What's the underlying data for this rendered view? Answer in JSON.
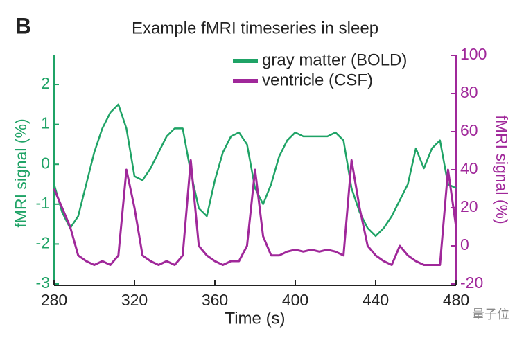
{
  "chart_data": {
    "type": "line",
    "panel_label": "B",
    "title": "Example fMRI timeseries in sleep",
    "x_label": "Time (s)",
    "y_label": "fMRI signal (%)",
    "y2_label": "fMRI signal (%)",
    "watermark": "量子位",
    "x": [
      280,
      284,
      288,
      292,
      296,
      300,
      304,
      308,
      312,
      316,
      320,
      324,
      328,
      332,
      336,
      340,
      344,
      348,
      352,
      356,
      360,
      364,
      368,
      372,
      376,
      380,
      384,
      388,
      392,
      396,
      400,
      404,
      408,
      412,
      416,
      420,
      424,
      428,
      432,
      436,
      440,
      444,
      448,
      452,
      456,
      460,
      464,
      468,
      472,
      476,
      480
    ],
    "series": [
      {
        "name": "gray matter (BOLD)",
        "color": "#1fa366",
        "axis": "y",
        "values": [
          -0.5,
          -1.2,
          -1.6,
          -1.3,
          -0.5,
          0.3,
          0.9,
          1.3,
          1.5,
          0.9,
          -0.3,
          -0.4,
          -0.1,
          0.3,
          0.7,
          0.9,
          0.9,
          -0.2,
          -1.1,
          -1.3,
          -0.4,
          0.3,
          0.7,
          0.8,
          0.5,
          -0.6,
          -1.0,
          -0.5,
          0.2,
          0.6,
          0.8,
          0.7,
          0.7,
          0.7,
          0.7,
          0.8,
          0.6,
          -0.6,
          -1.2,
          -1.6,
          -1.8,
          -1.6,
          -1.3,
          -0.9,
          -0.5,
          0.4,
          -0.1,
          0.4,
          0.6,
          -0.5,
          -0.6
        ]
      },
      {
        "name": "ventricle (CSF)",
        "color": "#a0289a",
        "axis": "y2",
        "values": [
          30,
          20,
          10,
          -5,
          -8,
          -10,
          -8,
          -10,
          -5,
          40,
          20,
          -5,
          -8,
          -10,
          -8,
          -10,
          -5,
          45,
          0,
          -5,
          -8,
          -10,
          -8,
          -8,
          0,
          40,
          5,
          -5,
          -5,
          -3,
          -2,
          -3,
          -2,
          -3,
          -2,
          -3,
          -5,
          45,
          20,
          0,
          -5,
          -8,
          -10,
          0,
          -5,
          -8,
          -10,
          -10,
          -10,
          40,
          10
        ]
      }
    ],
    "xlim": [
      280,
      480
    ],
    "xticks": [
      280,
      320,
      360,
      400,
      440,
      480
    ],
    "ylim": [
      -3,
      2.73
    ],
    "yticks": [
      -3,
      -2,
      -1,
      0,
      1,
      2
    ],
    "y2lim": [
      -20,
      100
    ],
    "y2ticks": [
      -20,
      0,
      20,
      40,
      60,
      80,
      100
    ],
    "grid": false,
    "legend": "top-right"
  }
}
